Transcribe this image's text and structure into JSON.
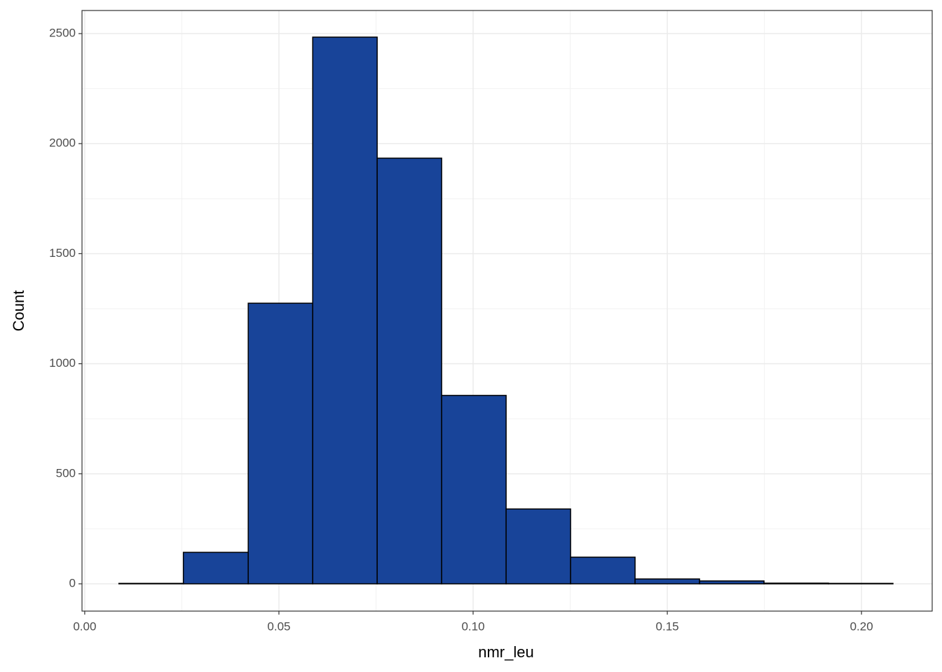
{
  "chart_data": {
    "type": "histogram",
    "xlabel": "nmr_leu",
    "ylabel": "Count",
    "bins": [
      0.0088,
      0.0254,
      0.0421,
      0.0587,
      0.0753,
      0.0919,
      0.1085,
      0.1251,
      0.1417,
      0.1583,
      0.1749,
      0.1915,
      0.2081
    ],
    "values": [
      2,
      143,
      1275,
      2484,
      1934,
      856,
      340,
      121,
      22,
      13,
      3,
      2
    ],
    "color": "#184499",
    "edgecolor": "#000000",
    "xlim": [
      -0.0007,
      0.2182
    ],
    "ylim": [
      -124,
      2605
    ],
    "xticks": [
      {
        "value": 0,
        "label": "0.00"
      },
      0.05,
      {
        "value": 0.1,
        "label": "0.10"
      },
      0.15,
      {
        "value": 0.2,
        "label": "0.20"
      }
    ],
    "yticks": [
      0,
      500,
      1000,
      1500,
      2000,
      2500
    ],
    "grid": true,
    "minor_grid": true
  }
}
